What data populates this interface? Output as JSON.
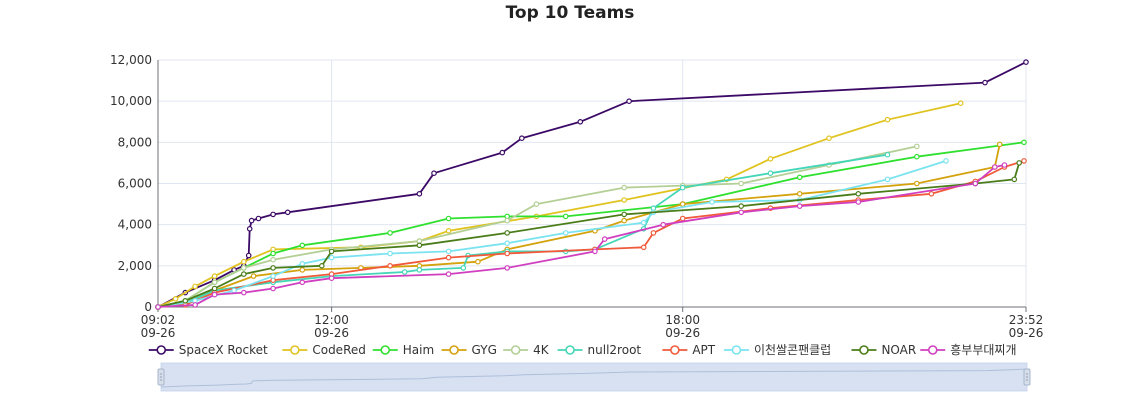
{
  "chart_data": {
    "type": "line",
    "title": "Top 10 Teams",
    "xlabel": "",
    "ylabel": "",
    "x_range": [
      "09:02",
      "23:52"
    ],
    "x_ticks": [
      {
        "t": "09:02",
        "lines": [
          "09:02",
          "09-26"
        ]
      },
      {
        "t": "12:00",
        "lines": [
          "12:00",
          "09-26"
        ]
      },
      {
        "t": "18:00",
        "lines": [
          "18:00",
          "09-26"
        ]
      },
      {
        "t": "23:52",
        "lines": [
          "23:52",
          "09-26"
        ]
      }
    ],
    "ylim": [
      0,
      12000
    ],
    "y_ticks": [
      "0",
      "2,000",
      "4,000",
      "6,000",
      "8,000",
      "10,000",
      "12,000"
    ],
    "grid": true,
    "legend_position": "bottom",
    "series": [
      {
        "name": "SpaceX Rocket",
        "color": "#3c0a66",
        "points": [
          [
            "09:02",
            0
          ],
          [
            "09:30",
            700
          ],
          [
            "10:00",
            1300
          ],
          [
            "10:20",
            1800
          ],
          [
            "10:30",
            2000
          ],
          [
            "10:35",
            2500
          ],
          [
            "10:36",
            3800
          ],
          [
            "10:38",
            4200
          ],
          [
            "10:45",
            4300
          ],
          [
            "11:00",
            4500
          ],
          [
            "11:15",
            4600
          ],
          [
            "13:30",
            5500
          ],
          [
            "13:45",
            6500
          ],
          [
            "14:55",
            7500
          ],
          [
            "15:15",
            8200
          ],
          [
            "16:15",
            9000
          ],
          [
            "17:05",
            10000
          ],
          [
            "23:10",
            10900
          ],
          [
            "23:52",
            11900
          ]
        ]
      },
      {
        "name": "CodeRed",
        "color": "#e0c31f",
        "points": [
          [
            "09:02",
            0
          ],
          [
            "09:20",
            400
          ],
          [
            "09:40",
            1000
          ],
          [
            "10:00",
            1500
          ],
          [
            "10:30",
            2200
          ],
          [
            "11:00",
            2800
          ],
          [
            "12:30",
            2900
          ],
          [
            "13:30",
            3200
          ],
          [
            "14:00",
            3700
          ],
          [
            "15:30",
            4400
          ],
          [
            "17:00",
            5200
          ],
          [
            "18:45",
            6200
          ],
          [
            "19:30",
            7200
          ],
          [
            "20:30",
            8200
          ],
          [
            "21:30",
            9100
          ],
          [
            "22:45",
            9900
          ]
        ]
      },
      {
        "name": "Haim",
        "color": "#2fe02f",
        "points": [
          [
            "09:02",
            0
          ],
          [
            "09:30",
            300
          ],
          [
            "10:00",
            1200
          ],
          [
            "10:30",
            1900
          ],
          [
            "11:00",
            2600
          ],
          [
            "11:30",
            3000
          ],
          [
            "13:00",
            3600
          ],
          [
            "14:00",
            4300
          ],
          [
            "15:00",
            4400
          ],
          [
            "16:00",
            4400
          ],
          [
            "18:00",
            5000
          ],
          [
            "20:00",
            6300
          ],
          [
            "22:00",
            7300
          ],
          [
            "23:50",
            8000
          ]
        ]
      },
      {
        "name": "GYG",
        "color": "#d4a20c",
        "points": [
          [
            "09:02",
            0
          ],
          [
            "09:30",
            200
          ],
          [
            "10:00",
            800
          ],
          [
            "10:40",
            1500
          ],
          [
            "11:30",
            1800
          ],
          [
            "12:30",
            1900
          ],
          [
            "13:30",
            2000
          ],
          [
            "14:30",
            2200
          ],
          [
            "15:00",
            2800
          ],
          [
            "16:30",
            3700
          ],
          [
            "17:00",
            4200
          ],
          [
            "18:00",
            5000
          ],
          [
            "20:00",
            5500
          ],
          [
            "22:00",
            6000
          ],
          [
            "23:20",
            6800
          ],
          [
            "23:25",
            7900
          ]
        ]
      },
      {
        "name": "4K",
        "color": "#b3cf95",
        "points": [
          [
            "09:02",
            0
          ],
          [
            "09:30",
            300
          ],
          [
            "10:00",
            1200
          ],
          [
            "10:30",
            1900
          ],
          [
            "11:00",
            2300
          ],
          [
            "12:00",
            2800
          ],
          [
            "13:30",
            3200
          ],
          [
            "15:00",
            4200
          ],
          [
            "15:30",
            5000
          ],
          [
            "17:00",
            5800
          ],
          [
            "18:00",
            5900
          ],
          [
            "19:00",
            6000
          ],
          [
            "20:30",
            6900
          ],
          [
            "22:00",
            7800
          ]
        ]
      },
      {
        "name": "null2root",
        "color": "#45d6b8",
        "points": [
          [
            "09:02",
            0
          ],
          [
            "09:30",
            200
          ],
          [
            "10:00",
            800
          ],
          [
            "11:00",
            1200
          ],
          [
            "12:00",
            1500
          ],
          [
            "13:15",
            1700
          ],
          [
            "13:30",
            1800
          ],
          [
            "14:15",
            1900
          ],
          [
            "14:20",
            2500
          ],
          [
            "15:00",
            2700
          ],
          [
            "16:00",
            2700
          ],
          [
            "16:30",
            2800
          ],
          [
            "17:20",
            3800
          ],
          [
            "17:30",
            4800
          ],
          [
            "18:00",
            5800
          ],
          [
            "19:30",
            6500
          ],
          [
            "21:30",
            7400
          ]
        ]
      },
      {
        "name": "APT",
        "color": "#f05a3a",
        "points": [
          [
            "09:02",
            0
          ],
          [
            "09:30",
            100
          ],
          [
            "10:00",
            700
          ],
          [
            "11:00",
            1300
          ],
          [
            "12:00",
            1600
          ],
          [
            "13:00",
            2000
          ],
          [
            "14:00",
            2400
          ],
          [
            "15:00",
            2600
          ],
          [
            "16:30",
            2800
          ],
          [
            "17:20",
            2900
          ],
          [
            "17:30",
            3600
          ],
          [
            "18:00",
            4300
          ],
          [
            "19:30",
            4800
          ],
          [
            "21:00",
            5200
          ],
          [
            "22:15",
            5500
          ],
          [
            "23:00",
            6100
          ],
          [
            "23:30",
            6800
          ],
          [
            "23:50",
            7100
          ]
        ]
      },
      {
        "name": "이천쌀콘팬클럽",
        "color": "#7ae3f0",
        "points": [
          [
            "09:02",
            0
          ],
          [
            "09:40",
            300
          ],
          [
            "10:20",
            800
          ],
          [
            "11:00",
            1500
          ],
          [
            "11:30",
            2100
          ],
          [
            "12:00",
            2400
          ],
          [
            "13:00",
            2600
          ],
          [
            "14:00",
            2700
          ],
          [
            "15:00",
            3100
          ],
          [
            "16:00",
            3600
          ],
          [
            "17:20",
            4100
          ],
          [
            "17:30",
            4600
          ],
          [
            "18:30",
            5100
          ],
          [
            "20:00",
            5200
          ],
          [
            "21:30",
            6200
          ],
          [
            "22:30",
            7100
          ]
        ]
      },
      {
        "name": "NOAR",
        "color": "#4a7d1a",
        "points": [
          [
            "09:02",
            0
          ],
          [
            "09:30",
            300
          ],
          [
            "10:00",
            900
          ],
          [
            "10:30",
            1600
          ],
          [
            "11:00",
            1900
          ],
          [
            "11:50",
            2000
          ],
          [
            "12:00",
            2700
          ],
          [
            "13:30",
            3000
          ],
          [
            "15:00",
            3600
          ],
          [
            "17:00",
            4500
          ],
          [
            "19:00",
            4900
          ],
          [
            "21:00",
            5500
          ],
          [
            "23:00",
            6000
          ],
          [
            "23:40",
            6200
          ],
          [
            "23:45",
            7000
          ]
        ]
      },
      {
        "name": "흥부부대찌개",
        "color": "#d03fc0",
        "points": [
          [
            "09:02",
            0
          ],
          [
            "09:40",
            100
          ],
          [
            "10:00",
            600
          ],
          [
            "10:30",
            700
          ],
          [
            "11:00",
            900
          ],
          [
            "11:30",
            1200
          ],
          [
            "12:00",
            1400
          ],
          [
            "14:00",
            1600
          ],
          [
            "15:00",
            1900
          ],
          [
            "16:30",
            2700
          ],
          [
            "16:40",
            3300
          ],
          [
            "17:40",
            4000
          ],
          [
            "19:00",
            4600
          ],
          [
            "20:00",
            4900
          ],
          [
            "21:00",
            5100
          ],
          [
            "23:00",
            6000
          ],
          [
            "23:20",
            6800
          ],
          [
            "23:30",
            6900
          ]
        ]
      }
    ]
  }
}
